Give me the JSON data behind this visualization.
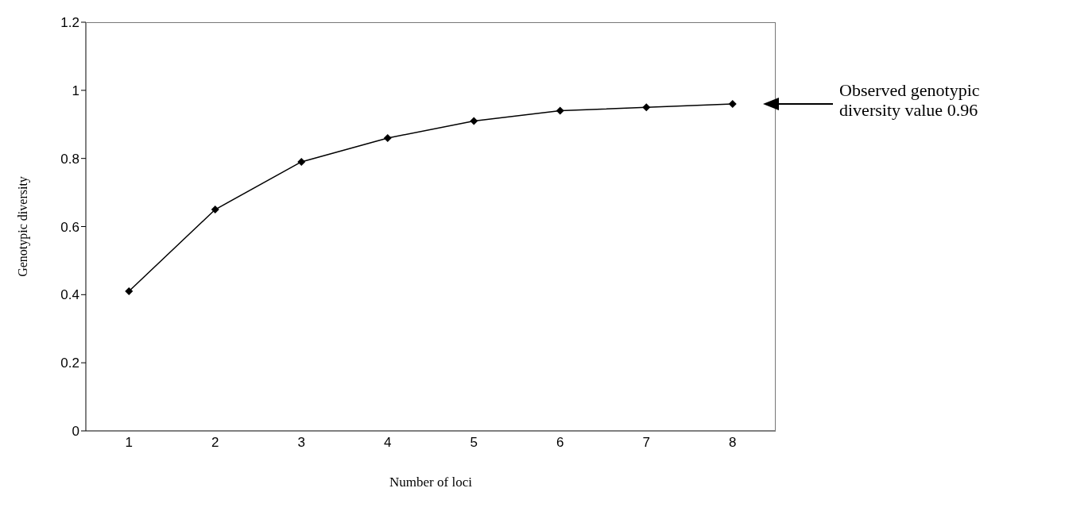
{
  "chart_data": {
    "type": "line",
    "xlabel": "Number of loci",
    "ylabel": "Genotypic diversity",
    "categories": [
      "1",
      "2",
      "3",
      "4",
      "5",
      "6",
      "7",
      "8"
    ],
    "series": [
      {
        "color": "#000000",
        "values": [
          0.41,
          0.65,
          0.79,
          0.86,
          0.91,
          0.94,
          0.95,
          0.96
        ]
      }
    ],
    "ylim": [
      0,
      1.2
    ],
    "yticks": [
      0,
      0.2,
      0.4,
      0.6,
      0.8,
      1,
      1.2
    ],
    "marker": "diamond",
    "line_style": "solid",
    "annotations": [
      "Observed genotypic diversity value 0.96"
    ]
  }
}
